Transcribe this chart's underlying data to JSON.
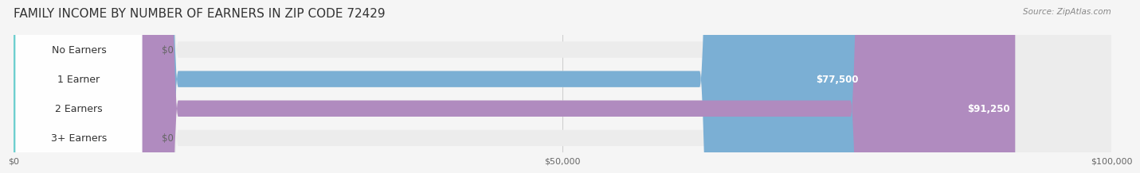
{
  "title": "FAMILY INCOME BY NUMBER OF EARNERS IN ZIP CODE 72429",
  "source": "Source: ZipAtlas.com",
  "categories": [
    "No Earners",
    "1 Earner",
    "2 Earners",
    "3+ Earners"
  ],
  "values": [
    0,
    77500,
    91250,
    0
  ],
  "bar_colors": [
    "#f4a0a0",
    "#7bafd4",
    "#b08bbf",
    "#6ecfcf"
  ],
  "label_colors": [
    "#f4a0a0",
    "#7bafd4",
    "#b08bbf",
    "#6ecfcf"
  ],
  "value_labels": [
    "$0",
    "$77,500",
    "$91,250",
    "$0"
  ],
  "xlim": [
    0,
    100000
  ],
  "xticks": [
    0,
    50000,
    100000
  ],
  "xtick_labels": [
    "$0",
    "$50,000",
    "$100,000"
  ],
  "bg_color": "#f5f5f5",
  "bar_bg_color": "#ececec",
  "title_fontsize": 11,
  "label_fontsize": 9,
  "value_fontsize": 8.5,
  "bar_height": 0.55
}
